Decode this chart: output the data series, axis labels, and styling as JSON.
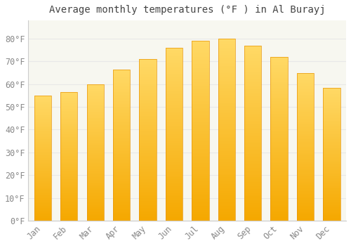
{
  "title": "Average monthly temperatures (°F ) in Al Burayj",
  "months": [
    "Jan",
    "Feb",
    "Mar",
    "Apr",
    "May",
    "Jun",
    "Jul",
    "Aug",
    "Sep",
    "Oct",
    "Nov",
    "Dec"
  ],
  "values": [
    55,
    56.5,
    60,
    66.5,
    71,
    76,
    79,
    80,
    77,
    72,
    65,
    58.5
  ],
  "bar_color_bottom": "#F5A800",
  "bar_color_top": "#FFD966",
  "bar_edge_color": "#E8960A",
  "yticks": [
    0,
    10,
    20,
    30,
    40,
    50,
    60,
    70,
    80
  ],
  "ytick_labels": [
    "0°F",
    "10°F",
    "20°F",
    "30°F",
    "40°F",
    "50°F",
    "60°F",
    "70°F",
    "80°F"
  ],
  "ylim": [
    0,
    88
  ],
  "background_color": "#ffffff",
  "plot_bg_color": "#f7f7f0",
  "grid_color": "#e8e8e8",
  "title_fontsize": 10,
  "tick_fontsize": 8.5,
  "tick_color": "#888888"
}
